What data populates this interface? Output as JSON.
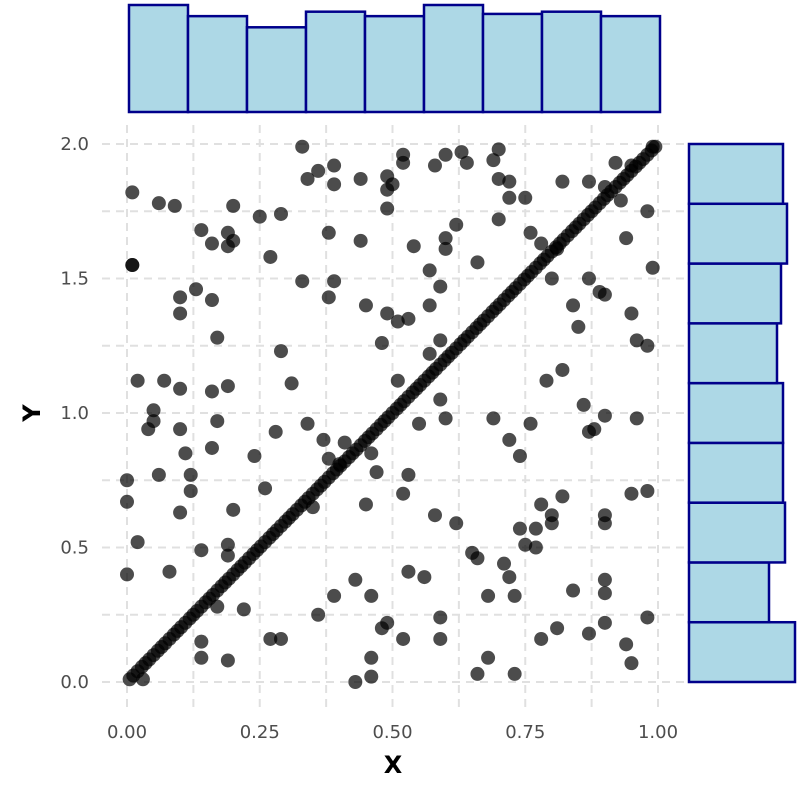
{
  "chart_data": {
    "type": "scatter",
    "title": "",
    "xlabel": "X",
    "ylabel": "Y",
    "xlim": [
      0,
      1
    ],
    "ylim": [
      0,
      2
    ],
    "x_ticks": [
      "0.00",
      "0.25",
      "0.50",
      "0.75",
      "1.00"
    ],
    "y_ticks": [
      "0.0",
      "0.5",
      "1.0",
      "1.5",
      "2.0"
    ],
    "grid": true,
    "grid_style": "dashed",
    "point_color": "#000000",
    "point_opacity": 0.7,
    "hist_fill": "#add8e6",
    "hist_stroke": "#00008b",
    "diagonal_points": {
      "description": "y = 2x",
      "x": [
        0.005,
        0.012,
        0.02,
        0.028,
        0.035,
        0.042,
        0.05,
        0.058,
        0.065,
        0.072,
        0.08,
        0.088,
        0.095,
        0.102,
        0.11,
        0.118,
        0.125,
        0.132,
        0.14,
        0.148,
        0.155,
        0.162,
        0.17,
        0.178,
        0.185,
        0.192,
        0.2,
        0.208,
        0.215,
        0.222,
        0.23,
        0.238,
        0.245,
        0.252,
        0.26,
        0.268,
        0.275,
        0.282,
        0.29,
        0.298,
        0.305,
        0.312,
        0.32,
        0.328,
        0.335,
        0.342,
        0.35,
        0.358,
        0.365,
        0.372,
        0.38,
        0.388,
        0.395,
        0.402,
        0.41,
        0.418,
        0.425,
        0.432,
        0.44,
        0.448,
        0.455,
        0.462,
        0.47,
        0.478,
        0.485,
        0.492,
        0.5,
        0.508,
        0.515,
        0.522,
        0.53,
        0.538,
        0.545,
        0.552,
        0.56,
        0.568,
        0.575,
        0.582,
        0.59,
        0.598,
        0.605,
        0.612,
        0.62,
        0.628,
        0.635,
        0.642,
        0.65,
        0.658,
        0.665,
        0.672,
        0.68,
        0.688,
        0.695,
        0.702,
        0.71,
        0.718,
        0.725,
        0.732,
        0.74,
        0.748,
        0.755,
        0.762,
        0.77,
        0.778,
        0.785,
        0.792,
        0.8,
        0.808,
        0.815,
        0.822,
        0.83,
        0.838,
        0.845,
        0.852,
        0.86,
        0.868,
        0.875,
        0.882,
        0.89,
        0.898,
        0.905,
        0.912,
        0.92,
        0.928,
        0.935,
        0.942,
        0.95,
        0.958,
        0.965,
        0.972,
        0.98,
        0.988,
        0.995
      ]
    },
    "scatter_points": [
      [
        0.33,
        1.99
      ],
      [
        0.34,
        1.87
      ],
      [
        0.36,
        1.9
      ],
      [
        0.39,
        1.92
      ],
      [
        0.39,
        1.85
      ],
      [
        0.44,
        1.87
      ],
      [
        0.49,
        1.88
      ],
      [
        0.49,
        1.83
      ],
      [
        0.5,
        1.85
      ],
      [
        0.52,
        1.93
      ],
      [
        0.52,
        1.96
      ],
      [
        0.58,
        1.92
      ],
      [
        0.6,
        1.96
      ],
      [
        0.63,
        1.97
      ],
      [
        0.64,
        1.93
      ],
      [
        0.69,
        1.94
      ],
      [
        0.7,
        1.98
      ],
      [
        0.7,
        1.87
      ],
      [
        0.72,
        1.86
      ],
      [
        0.72,
        1.8
      ],
      [
        0.75,
        1.8
      ],
      [
        0.82,
        1.86
      ],
      [
        0.87,
        1.86
      ],
      [
        0.9,
        1.84
      ],
      [
        0.92,
        1.93
      ],
      [
        0.95,
        1.92
      ],
      [
        0.99,
        1.99
      ],
      [
        0.01,
        1.82
      ],
      [
        0.06,
        1.78
      ],
      [
        0.09,
        1.77
      ],
      [
        0.2,
        1.77
      ],
      [
        0.25,
        1.73
      ],
      [
        0.29,
        1.74
      ],
      [
        0.49,
        1.76
      ],
      [
        0.7,
        1.72
      ],
      [
        0.93,
        1.79
      ],
      [
        0.98,
        1.75
      ],
      [
        0.14,
        1.68
      ],
      [
        0.16,
        1.63
      ],
      [
        0.19,
        1.62
      ],
      [
        0.19,
        1.67
      ],
      [
        0.2,
        1.64
      ],
      [
        0.27,
        1.58
      ],
      [
        0.38,
        1.67
      ],
      [
        0.44,
        1.64
      ],
      [
        0.54,
        1.62
      ],
      [
        0.6,
        1.61
      ],
      [
        0.6,
        1.65
      ],
      [
        0.62,
        1.7
      ],
      [
        0.66,
        1.56
      ],
      [
        0.76,
        1.67
      ],
      [
        0.78,
        1.63
      ],
      [
        0.81,
        1.61
      ],
      [
        0.94,
        1.65
      ],
      [
        0.01,
        1.55
      ],
      [
        0.01,
        1.55
      ],
      [
        0.33,
        1.49
      ],
      [
        0.38,
        1.43
      ],
      [
        0.39,
        1.49
      ],
      [
        0.13,
        1.46
      ],
      [
        0.1,
        1.43
      ],
      [
        0.1,
        1.37
      ],
      [
        0.16,
        1.42
      ],
      [
        0.45,
        1.4
      ],
      [
        0.49,
        1.37
      ],
      [
        0.51,
        1.34
      ],
      [
        0.53,
        1.35
      ],
      [
        0.57,
        1.53
      ],
      [
        0.57,
        1.4
      ],
      [
        0.59,
        1.47
      ],
      [
        0.8,
        1.5
      ],
      [
        0.84,
        1.4
      ],
      [
        0.85,
        1.32
      ],
      [
        0.87,
        1.5
      ],
      [
        0.89,
        1.45
      ],
      [
        0.9,
        1.44
      ],
      [
        0.95,
        1.37
      ],
      [
        0.96,
        1.27
      ],
      [
        0.98,
        1.25
      ],
      [
        0.99,
        1.54
      ],
      [
        0.17,
        1.28
      ],
      [
        0.29,
        1.23
      ],
      [
        0.48,
        1.26
      ],
      [
        0.57,
        1.22
      ],
      [
        0.59,
        1.27
      ],
      [
        0.02,
        1.12
      ],
      [
        0.07,
        1.12
      ],
      [
        0.1,
        1.09
      ],
      [
        0.16,
        1.08
      ],
      [
        0.19,
        1.1
      ],
      [
        0.31,
        1.11
      ],
      [
        0.51,
        1.12
      ],
      [
        0.05,
        1.01
      ],
      [
        0.05,
        0.97
      ],
      [
        0.04,
        0.94
      ],
      [
        0.1,
        0.94
      ],
      [
        0.17,
        0.97
      ],
      [
        0.28,
        0.93
      ],
      [
        0.34,
        0.96
      ],
      [
        0.37,
        0.9
      ],
      [
        0.41,
        0.89
      ],
      [
        0.55,
        0.96
      ],
      [
        0.59,
        1.05
      ],
      [
        0.6,
        0.98
      ],
      [
        0.69,
        0.98
      ],
      [
        0.76,
        0.96
      ],
      [
        0.79,
        1.12
      ],
      [
        0.82,
        1.16
      ],
      [
        0.86,
        1.03
      ],
      [
        0.87,
        0.93
      ],
      [
        0.88,
        0.94
      ],
      [
        0.9,
        0.99
      ],
      [
        0.96,
        0.98
      ],
      [
        0.0,
        0.75
      ],
      [
        0.0,
        0.67
      ],
      [
        0.11,
        0.85
      ],
      [
        0.16,
        0.87
      ],
      [
        0.12,
        0.77
      ],
      [
        0.06,
        0.77
      ],
      [
        0.12,
        0.71
      ],
      [
        0.1,
        0.63
      ],
      [
        0.24,
        0.84
      ],
      [
        0.26,
        0.72
      ],
      [
        0.38,
        0.83
      ],
      [
        0.4,
        0.81
      ],
      [
        0.46,
        0.85
      ],
      [
        0.47,
        0.78
      ],
      [
        0.53,
        0.77
      ],
      [
        0.52,
        0.7
      ],
      [
        0.58,
        0.62
      ],
      [
        0.62,
        0.59
      ],
      [
        0.72,
        0.9
      ],
      [
        0.74,
        0.84
      ],
      [
        0.82,
        0.69
      ],
      [
        0.8,
        0.62
      ],
      [
        0.8,
        0.59
      ],
      [
        0.77,
        0.57
      ],
      [
        0.78,
        0.66
      ],
      [
        0.74,
        0.57
      ],
      [
        0.77,
        0.5
      ],
      [
        0.9,
        0.59
      ],
      [
        0.9,
        0.62
      ],
      [
        0.95,
        0.7
      ],
      [
        0.98,
        0.71
      ],
      [
        0.35,
        0.65
      ],
      [
        0.45,
        0.66
      ],
      [
        0.2,
        0.64
      ],
      [
        0.02,
        0.52
      ],
      [
        0.0,
        0.4
      ],
      [
        0.08,
        0.41
      ],
      [
        0.14,
        0.49
      ],
      [
        0.19,
        0.47
      ],
      [
        0.19,
        0.51
      ],
      [
        0.17,
        0.28
      ],
      [
        0.22,
        0.27
      ],
      [
        0.14,
        0.15
      ],
      [
        0.14,
        0.09
      ],
      [
        0.19,
        0.08
      ],
      [
        0.27,
        0.16
      ],
      [
        0.29,
        0.16
      ],
      [
        0.36,
        0.25
      ],
      [
        0.39,
        0.32
      ],
      [
        0.43,
        0.38
      ],
      [
        0.46,
        0.32
      ],
      [
        0.48,
        0.2
      ],
      [
        0.49,
        0.22
      ],
      [
        0.52,
        0.16
      ],
      [
        0.53,
        0.41
      ],
      [
        0.56,
        0.39
      ],
      [
        0.59,
        0.16
      ],
      [
        0.59,
        0.24
      ],
      [
        0.65,
        0.48
      ],
      [
        0.66,
        0.46
      ],
      [
        0.68,
        0.32
      ],
      [
        0.71,
        0.44
      ],
      [
        0.72,
        0.39
      ],
      [
        0.73,
        0.32
      ],
      [
        0.75,
        0.51
      ],
      [
        0.78,
        0.16
      ],
      [
        0.81,
        0.2
      ],
      [
        0.84,
        0.34
      ],
      [
        0.87,
        0.18
      ],
      [
        0.9,
        0.22
      ],
      [
        0.9,
        0.33
      ],
      [
        0.9,
        0.38
      ],
      [
        0.94,
        0.14
      ],
      [
        0.95,
        0.07
      ],
      [
        0.98,
        0.24
      ],
      [
        0.46,
        0.09
      ],
      [
        0.46,
        0.02
      ],
      [
        0.43,
        0.0
      ],
      [
        0.66,
        0.03
      ],
      [
        0.68,
        0.09
      ],
      [
        0.73,
        0.03
      ],
      [
        0.03,
        0.01
      ]
    ],
    "top_histogram": {
      "bins": 9,
      "range": [
        0,
        1
      ],
      "counts": [
        48,
        43,
        38,
        45,
        43,
        48,
        44,
        45,
        43
      ]
    },
    "right_histogram": {
      "bins": 9,
      "range": [
        0,
        2
      ],
      "counts": [
        53,
        40,
        48,
        47,
        47,
        44,
        46,
        49,
        47
      ]
    }
  }
}
